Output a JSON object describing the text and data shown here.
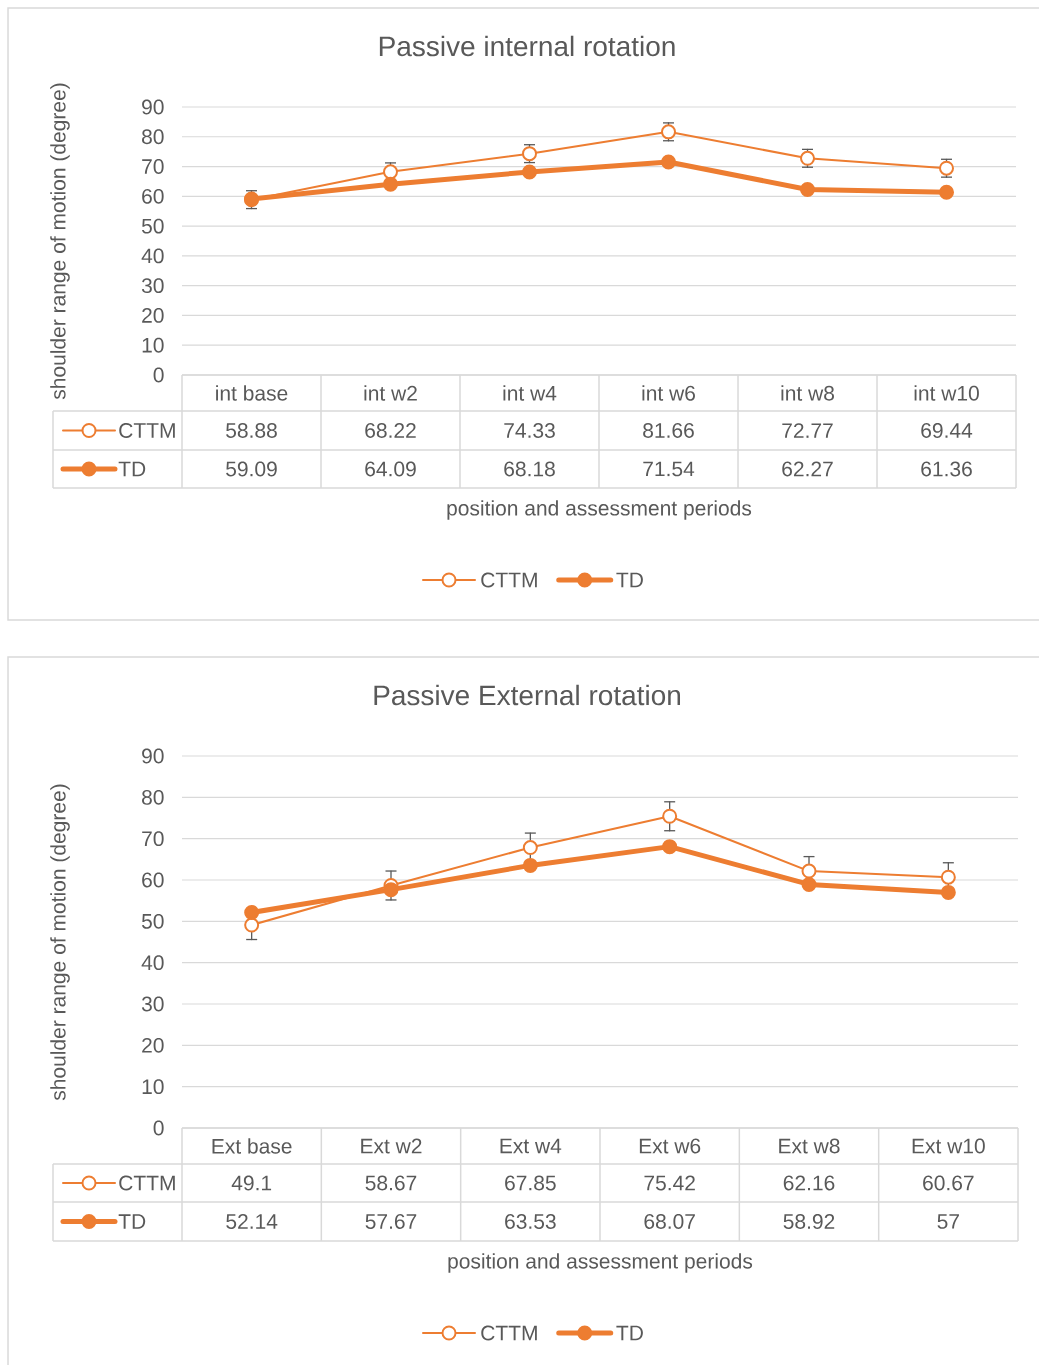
{
  "chart_data": [
    {
      "type": "line",
      "title": "Passive internal rotation",
      "xlabel": "position and assessment periods",
      "ylabel": "shoulder range of motion (degree)",
      "categories": [
        "int base",
        "int w2",
        "int w4",
        "int w6",
        "int w8",
        "int w10"
      ],
      "series": [
        {
          "name": "CTTM",
          "color": "#ed7d31",
          "values": [
            58.88,
            68.22,
            74.33,
            81.66,
            72.77,
            69.44
          ],
          "errors": [
            3,
            3,
            3,
            3,
            3,
            3
          ]
        },
        {
          "name": "TD",
          "color": "#ed7d31",
          "values": [
            59.09,
            64.09,
            68.18,
            71.54,
            62.27,
            61.36
          ]
        }
      ],
      "ylim": [
        0,
        90
      ],
      "yticks": [
        0,
        10,
        20,
        30,
        40,
        50,
        60,
        70,
        80,
        90
      ],
      "grid": "y",
      "legend": "bottom",
      "marker": "circle",
      "data_labels": true
    },
    {
      "type": "line",
      "title": "Passive External rotation",
      "xlabel": "position and assessment periods",
      "ylabel": "shoulder range of motion (degree)",
      "categories": [
        "Ext base",
        "Ext w2",
        "Ext w4",
        "Ext w6",
        "Ext w8",
        "Ext w10"
      ],
      "series": [
        {
          "name": "CTTM",
          "color": "#ed7d31",
          "values": [
            49.1,
            58.67,
            67.85,
            75.42,
            62.16,
            60.67
          ],
          "errors": [
            3.5,
            3.5,
            3.5,
            3.5,
            3.5,
            3.5
          ]
        },
        {
          "name": "TD",
          "color": "#ed7d31",
          "values": [
            52.14,
            57.67,
            63.53,
            68.07,
            58.92,
            57
          ]
        }
      ],
      "ylim": [
        0,
        90
      ],
      "yticks": [
        0,
        10,
        20,
        30,
        40,
        50,
        60,
        70,
        80,
        90
      ],
      "grid": "y",
      "legend": "bottom",
      "marker": "circle",
      "data_labels": true
    }
  ]
}
